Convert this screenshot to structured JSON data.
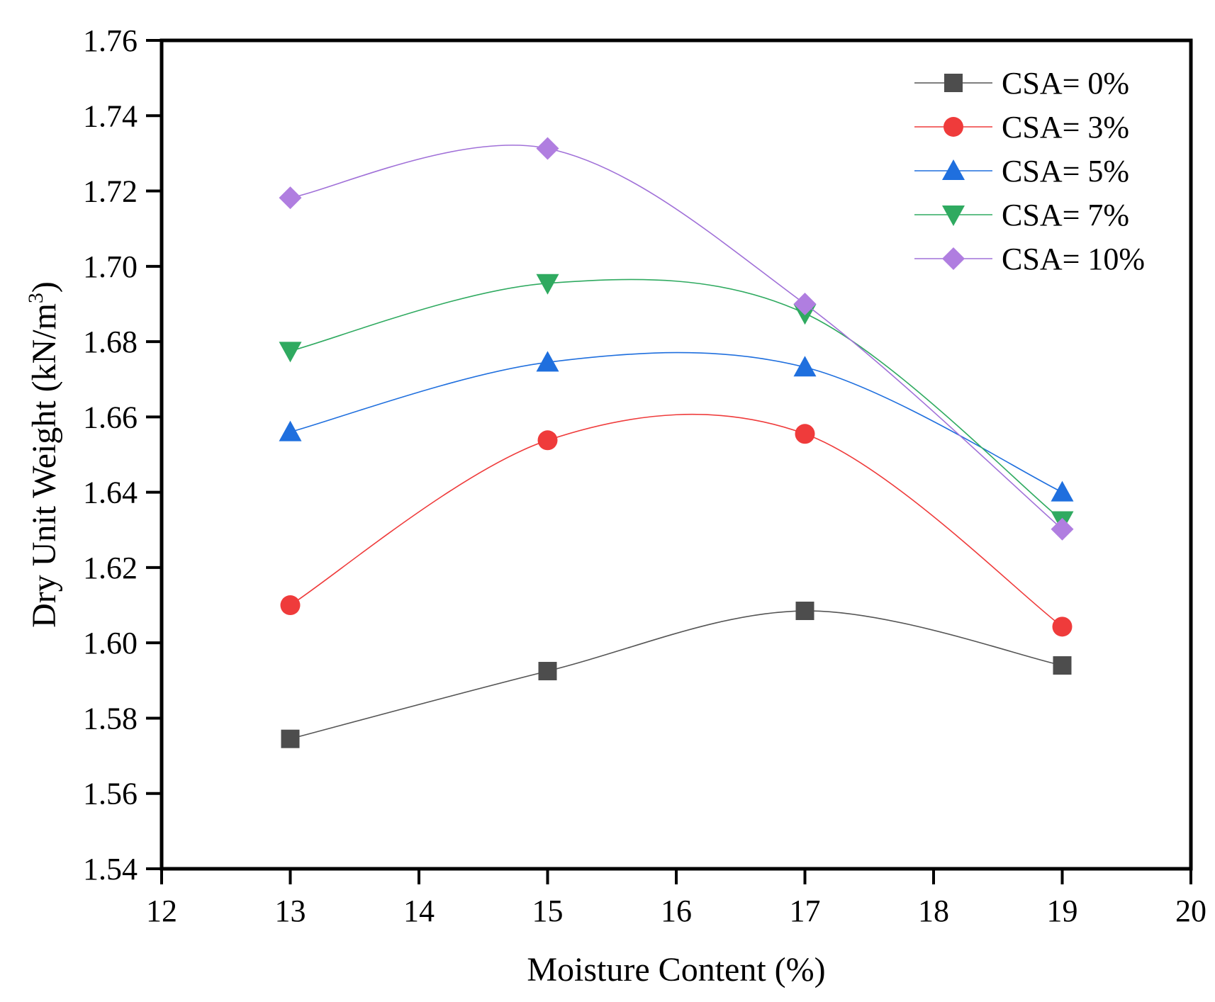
{
  "chart_data": {
    "type": "line",
    "title": "",
    "xlabel": "Moisture Content (%)",
    "ylabel_main": "Dry Unit Weight (kN/m",
    "ylabel_sup": "3",
    "ylabel_close": ")",
    "xlim": [
      12,
      20
    ],
    "ylim": [
      1.54,
      1.76
    ],
    "xticks": [
      12,
      13,
      14,
      15,
      16,
      17,
      18,
      19,
      20
    ],
    "yticks": [
      1.54,
      1.56,
      1.58,
      1.6,
      1.62,
      1.64,
      1.66,
      1.68,
      1.7,
      1.72,
      1.74,
      1.76
    ],
    "legend_position": "top-right",
    "x": [
      13,
      15,
      17,
      19
    ],
    "series": [
      {
        "name": "CSA= 0%",
        "marker": "square",
        "color": "#4d4d4d",
        "line_color": "#555555",
        "values": [
          1.5745,
          1.5925,
          1.6085,
          1.594
        ]
      },
      {
        "name": "CSA= 3%",
        "marker": "circle",
        "color": "#ef3b3b",
        "line_color": "#ef3b3b",
        "values": [
          1.61,
          1.6538,
          1.6555,
          1.6043
        ]
      },
      {
        "name": "CSA= 5%",
        "marker": "triangle",
        "color": "#1f6fde",
        "line_color": "#1f6fde",
        "values": [
          1.656,
          1.6745,
          1.6732,
          1.64
        ]
      },
      {
        "name": "CSA= 7%",
        "marker": "triangle-down",
        "color": "#2faa60",
        "line_color": "#2faa60",
        "values": [
          1.6775,
          1.6955,
          1.6875,
          1.6325
        ]
      },
      {
        "name": "CSA= 10%",
        "marker": "diamond",
        "color": "#b07ee0",
        "line_color": "#a070d8",
        "values": [
          1.7182,
          1.7313,
          1.69,
          1.6302
        ]
      }
    ]
  }
}
